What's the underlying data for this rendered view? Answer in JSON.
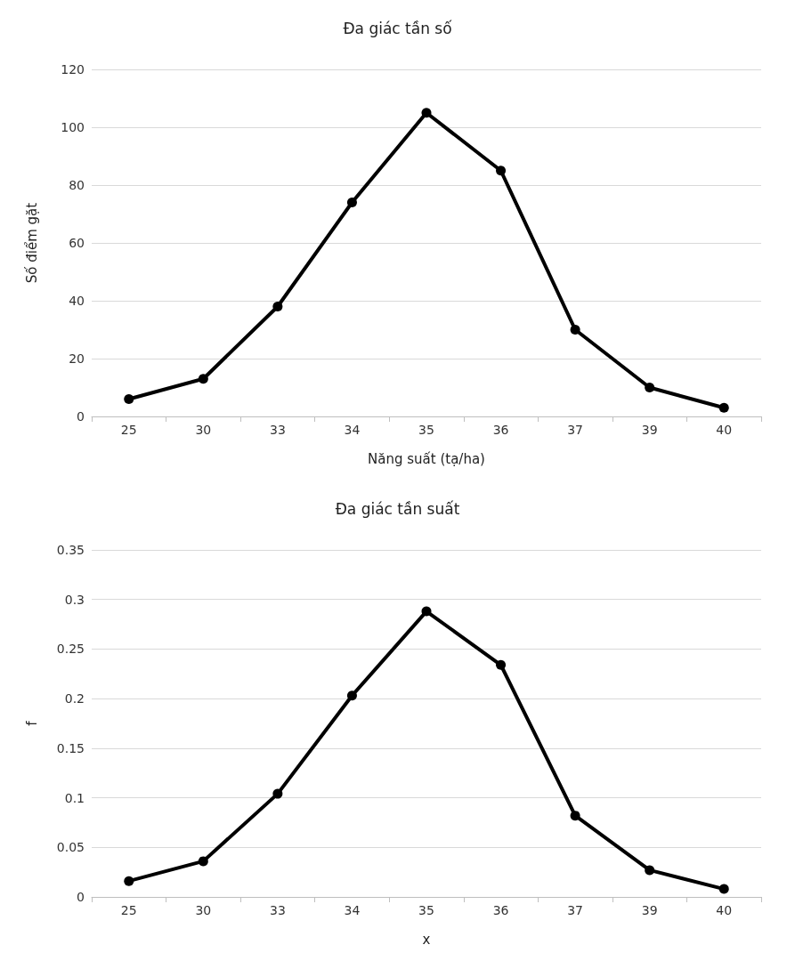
{
  "chart_data": [
    {
      "type": "line",
      "title": "Đa giác tần số",
      "xlabel": "Năng suất (tạ/ha)",
      "ylabel": "Số điểm gặt",
      "categories": [
        "25",
        "30",
        "33",
        "34",
        "35",
        "36",
        "37",
        "39",
        "40"
      ],
      "series": [
        {
          "color": "#000000",
          "values": [
            6,
            13,
            38,
            74,
            105,
            85,
            30,
            10,
            3
          ]
        }
      ],
      "ylim": [
        0,
        120
      ],
      "yticks": [
        0,
        20,
        40,
        60,
        80,
        100,
        120
      ],
      "grid": "y",
      "marker": "circle",
      "line_style": "solid"
    },
    {
      "type": "line",
      "title": "Đa giác tần suất",
      "xlabel": "x",
      "ylabel": "f",
      "categories": [
        "25",
        "30",
        "33",
        "34",
        "35",
        "36",
        "37",
        "39",
        "40"
      ],
      "series": [
        {
          "color": "#000000",
          "values": [
            0.016,
            0.036,
            0.104,
            0.203,
            0.288,
            0.234,
            0.082,
            0.027,
            0.008
          ]
        }
      ],
      "ylim": [
        0,
        0.35
      ],
      "yticks": [
        0,
        0.05,
        0.1,
        0.15,
        0.2,
        0.25,
        0.3,
        0.35
      ],
      "grid": "y",
      "marker": "circle",
      "line_style": "solid"
    }
  ]
}
